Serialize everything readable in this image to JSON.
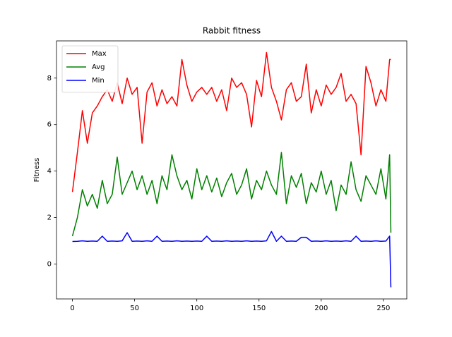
{
  "chart_data": {
    "type": "line",
    "title": "Rabbit fitness",
    "y_label": "Fitness",
    "x": [
      0,
      4,
      8,
      12,
      16,
      20,
      24,
      28,
      32,
      36,
      40,
      44,
      48,
      52,
      56,
      60,
      64,
      68,
      72,
      76,
      80,
      84,
      88,
      92,
      96,
      100,
      104,
      108,
      112,
      116,
      120,
      124,
      128,
      132,
      136,
      140,
      144,
      148,
      152,
      156,
      160,
      164,
      168,
      172,
      176,
      180,
      184,
      188,
      192,
      196,
      200,
      204,
      208,
      212,
      216,
      220,
      224,
      228,
      232,
      236,
      240,
      244,
      248,
      252,
      255,
      256
    ],
    "series": [
      {
        "name": "Max",
        "color": "#ff0000",
        "values": [
          3.1,
          4.8,
          6.6,
          5.2,
          6.5,
          6.8,
          7.2,
          7.5,
          7.0,
          7.8,
          6.9,
          8.0,
          7.3,
          7.6,
          5.2,
          7.4,
          7.8,
          6.8,
          7.5,
          6.9,
          7.2,
          6.8,
          8.8,
          7.7,
          7.0,
          7.4,
          7.6,
          7.3,
          7.6,
          7.0,
          7.5,
          6.6,
          8.0,
          7.6,
          7.8,
          7.3,
          5.9,
          7.9,
          7.2,
          9.1,
          7.6,
          7.0,
          6.2,
          7.5,
          7.8,
          7.0,
          7.2,
          8.6,
          6.5,
          7.5,
          6.8,
          7.7,
          7.3,
          7.6,
          8.2,
          7.0,
          7.3,
          6.9,
          4.7,
          8.5,
          7.8,
          6.8,
          7.5,
          7.0,
          8.8,
          8.8
        ]
      },
      {
        "name": "Avg",
        "color": "#008000",
        "values": [
          1.2,
          2.0,
          3.2,
          2.5,
          3.0,
          2.4,
          3.6,
          2.6,
          3.0,
          4.6,
          3.0,
          3.5,
          4.0,
          3.2,
          3.8,
          3.0,
          3.6,
          2.6,
          3.8,
          3.2,
          4.7,
          3.8,
          3.2,
          3.6,
          2.8,
          4.1,
          3.2,
          3.8,
          3.1,
          3.7,
          2.9,
          3.5,
          3.9,
          3.0,
          3.4,
          4.1,
          2.8,
          3.6,
          3.2,
          4.0,
          3.4,
          3.0,
          4.8,
          2.6,
          3.8,
          3.3,
          3.9,
          2.6,
          3.5,
          3.1,
          4.0,
          3.0,
          3.6,
          2.3,
          3.4,
          3.0,
          4.4,
          3.2,
          2.7,
          3.8,
          3.4,
          3.0,
          4.1,
          2.8,
          4.7,
          1.35
        ]
      },
      {
        "name": "Min",
        "color": "#0000ff",
        "values": [
          0.97,
          0.98,
          1.0,
          0.98,
          0.99,
          0.98,
          1.2,
          0.98,
          0.99,
          0.98,
          1.0,
          1.35,
          0.98,
          0.99,
          0.98,
          1.0,
          0.98,
          1.2,
          0.98,
          0.99,
          0.98,
          1.0,
          0.98,
          0.99,
          0.98,
          0.99,
          0.98,
          1.2,
          0.98,
          0.99,
          0.98,
          1.0,
          0.98,
          0.99,
          0.98,
          1.0,
          0.98,
          0.99,
          0.98,
          1.0,
          1.4,
          0.98,
          1.2,
          0.98,
          0.99,
          0.98,
          1.15,
          1.15,
          0.98,
          0.99,
          0.98,
          1.0,
          0.98,
          0.99,
          0.98,
          1.0,
          0.98,
          1.2,
          0.98,
          0.99,
          0.98,
          1.0,
          0.98,
          0.99,
          1.2,
          -1.0
        ]
      }
    ],
    "xlim": [
      -12.8,
      268.8
    ],
    "xticks": [
      0,
      50,
      100,
      150,
      200,
      250
    ],
    "ylim": [
      -1.5,
      9.6
    ],
    "yticks": [
      0,
      2,
      4,
      6,
      8
    ],
    "legend": "upper left"
  }
}
